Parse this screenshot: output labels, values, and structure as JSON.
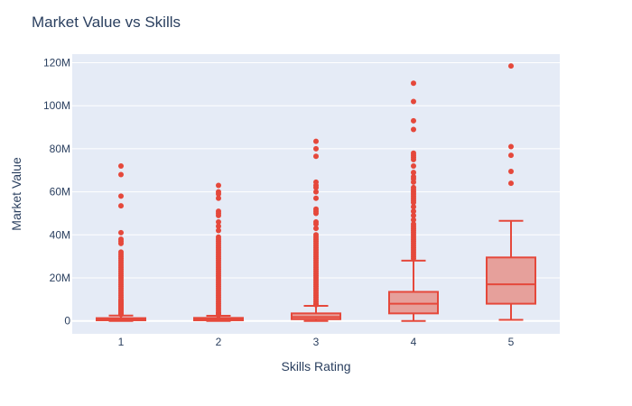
{
  "chart_data": {
    "type": "box",
    "title": "Market Value vs Skills",
    "xlabel": "Skills Rating",
    "ylabel": "Market Value",
    "categories": [
      "1",
      "2",
      "3",
      "4",
      "5"
    ],
    "ylim": [
      -6,
      124
    ],
    "yticks": [
      0,
      20,
      40,
      60,
      80,
      100,
      120
    ],
    "ytick_labels": [
      "0",
      "20M",
      "40M",
      "60M",
      "80M",
      "100M",
      "120M"
    ],
    "grid": true,
    "legend": "none",
    "colors": {
      "box_line": "#e5483b",
      "box_fill": "#e6a09b",
      "plot_bg": "#e5ebf6",
      "grid": "#ffffff",
      "title": "#2a3f5f"
    },
    "boxes": [
      {
        "category": "1",
        "min": 0,
        "q1": 0.3,
        "median": 0.7,
        "q3": 1.3,
        "max": 2.5,
        "outliers": [
          3,
          3.5,
          4,
          4.5,
          5,
          5.5,
          6,
          6.5,
          7,
          7.5,
          8,
          8.5,
          9,
          9.5,
          10,
          11,
          12,
          13,
          14,
          15,
          16,
          17,
          18,
          19,
          20,
          21,
          22,
          23,
          24,
          25,
          26,
          27,
          28,
          29,
          30,
          31,
          32,
          36,
          37,
          38,
          41,
          53.5,
          58,
          68,
          72
        ]
      },
      {
        "category": "2",
        "min": 0,
        "q1": 0.3,
        "median": 0.8,
        "q3": 1.4,
        "max": 2.4,
        "outliers": [
          2.8,
          3.5,
          4,
          5,
          6,
          7,
          8,
          9,
          10,
          11,
          12,
          13,
          14,
          15,
          16,
          17,
          18,
          19,
          20,
          21,
          22,
          23,
          24,
          25,
          26,
          27,
          28,
          29,
          30,
          31,
          32,
          33,
          34,
          35,
          36,
          37,
          38,
          39,
          42,
          44,
          46,
          49,
          50,
          51,
          57,
          59,
          60,
          63
        ]
      },
      {
        "category": "3",
        "min": 0,
        "q1": 0.8,
        "median": 1.8,
        "q3": 3.5,
        "max": 7,
        "outliers": [
          7.5,
          8,
          9,
          10,
          11,
          12,
          13,
          14,
          15,
          16,
          17,
          18,
          19,
          20,
          21,
          22,
          23,
          24,
          25,
          26,
          27,
          28,
          29,
          30,
          31,
          32,
          33,
          34,
          35,
          36,
          37,
          38,
          39,
          40,
          43,
          45,
          46,
          50,
          51,
          52,
          57,
          60,
          62,
          63,
          64.5,
          76.5,
          80,
          83.5
        ]
      },
      {
        "category": "4",
        "min": 0,
        "q1": 3.5,
        "median": 8,
        "q3": 13.5,
        "max": 28,
        "outliers": [
          29,
          30,
          31,
          32,
          33,
          34,
          35,
          36,
          37,
          38,
          39,
          40,
          41,
          42,
          43,
          44,
          45,
          47,
          49,
          51,
          53,
          55,
          56,
          57,
          58,
          59,
          60,
          61,
          62,
          64.5,
          66,
          67,
          69,
          72,
          75,
          76,
          77,
          78,
          89,
          93,
          102,
          110.5
        ]
      },
      {
        "category": "5",
        "min": 0.5,
        "q1": 8,
        "median": 17,
        "q3": 29.5,
        "max": 46.5,
        "outliers": [
          64,
          69.5,
          77,
          81,
          118.5
        ]
      }
    ]
  }
}
